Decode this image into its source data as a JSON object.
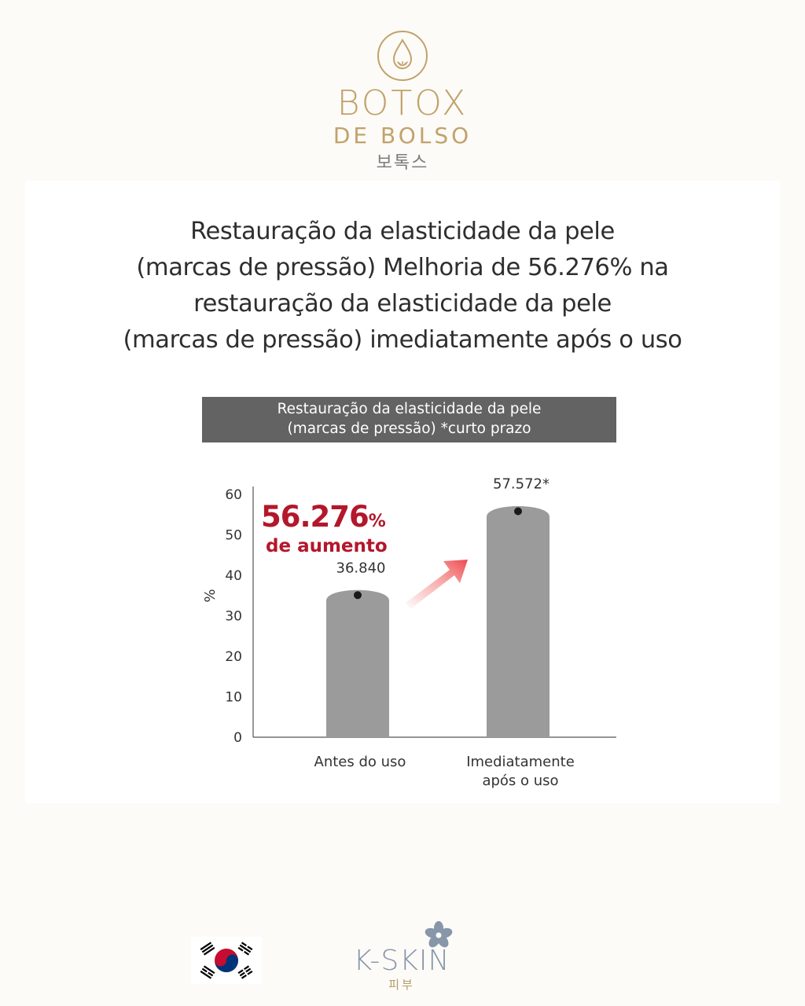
{
  "brand": {
    "line1": "BOTOX",
    "line2": "DE BOLSO",
    "korean": "보톡스",
    "gold_color": "#c2a26a"
  },
  "headline": {
    "lines": [
      "Restauração da elasticidade da pele",
      "(marcas de pressão) Melhoria de 56.276% na",
      "restauração da elasticidade da pele",
      "(marcas de pressão) imediatamente após o uso"
    ]
  },
  "chart_banner": {
    "line1": "Restauração da elasticidade da pele",
    "line2": "(marcas de pressão) *curto prazo",
    "bg_color": "#636363"
  },
  "chart_data": {
    "type": "bar",
    "title": "Restauração da elasticidade da pele (marcas de pressão) *curto prazo",
    "categories": [
      "Antes do uso",
      "Imediatamente após o uso"
    ],
    "category_lines": [
      [
        "Antes do uso"
      ],
      [
        "Imediatamente",
        "após o uso"
      ]
    ],
    "values": [
      36.84,
      57.572
    ],
    "value_labels": [
      "36.840",
      "57.572*"
    ],
    "ylabel": "%",
    "ylim": [
      0,
      60
    ],
    "yticks": [
      0,
      10,
      20,
      30,
      40,
      50,
      60
    ],
    "grid": false,
    "bar_color": "#9b9b9b",
    "highlight": {
      "value": "56.276",
      "unit": "%",
      "text": "de aumento",
      "color": "#b3172b"
    }
  },
  "footer": {
    "flag": "south-korea-flag",
    "kskin_text": "K-SKIN",
    "kskin_korean": "피부"
  }
}
